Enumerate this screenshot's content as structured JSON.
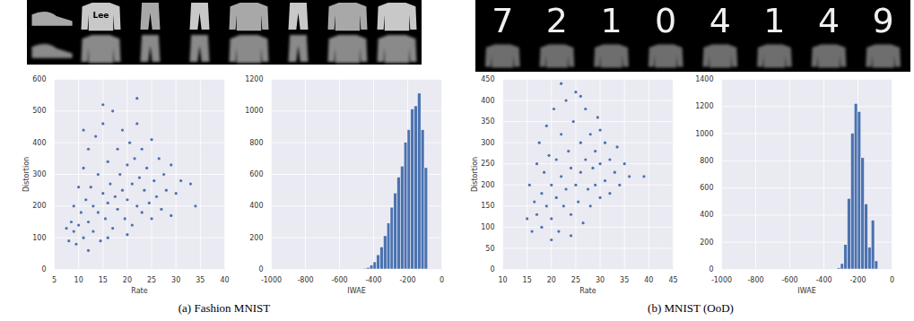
{
  "panels": [
    {
      "caption": "(a) Fashion MNIST",
      "image_text": [
        "Lee"
      ]
    },
    {
      "caption": "(b) MNIST (OoD)",
      "image_text": [
        "7",
        "2",
        "1",
        "0",
        "4",
        "1",
        "4",
        "9"
      ]
    }
  ],
  "chart_data": [
    {
      "type": "scatter",
      "x_label": "Rate",
      "y_label": "Distortion",
      "color": "#4c72b0",
      "grid": true,
      "xlim": [
        5,
        40
      ],
      "xticks": [
        5,
        10,
        15,
        20,
        25,
        30,
        35,
        40
      ],
      "ylim": [
        0,
        600
      ],
      "yticks": [
        0,
        100,
        200,
        300,
        400,
        500,
        600
      ],
      "x": [
        8,
        8.5,
        9,
        9,
        9.5,
        10,
        10,
        10.5,
        11,
        11,
        11.5,
        12,
        12,
        12.5,
        13,
        13,
        13.5,
        14,
        14,
        14.5,
        15,
        15,
        15.5,
        16,
        16,
        16.5,
        17,
        17,
        17.5,
        18,
        18,
        18.5,
        19,
        19,
        19.5,
        20,
        20,
        20.5,
        21,
        21,
        21.5,
        22,
        22,
        22.5,
        23,
        23,
        23.5,
        24,
        24.5,
        25,
        25,
        25.5,
        26,
        26.5,
        27,
        27.5,
        28,
        29,
        29,
        30,
        31,
        33,
        34,
        12,
        16,
        20,
        7.5,
        11,
        15,
        22
      ],
      "values": [
        90,
        150,
        120,
        200,
        80,
        140,
        260,
        180,
        100,
        320,
        220,
        150,
        380,
        260,
        120,
        200,
        420,
        180,
        300,
        90,
        240,
        460,
        160,
        340,
        210,
        270,
        500,
        130,
        230,
        380,
        190,
        300,
        250,
        440,
        160,
        330,
        220,
        400,
        270,
        140,
        350,
        200,
        460,
        290,
        180,
        380,
        250,
        320,
        210,
        410,
        160,
        280,
        230,
        350,
        190,
        300,
        250,
        170,
        330,
        240,
        280,
        270,
        200,
        60,
        100,
        110,
        130,
        440,
        520,
        540
      ]
    },
    {
      "type": "histogram",
      "x_label": "IWAE",
      "color": "#4c72b0",
      "grid": true,
      "xlim": [
        -1000,
        0
      ],
      "xticks": [
        -1000,
        -800,
        -600,
        -400,
        -200,
        0
      ],
      "ylim": [
        0,
        1200
      ],
      "yticks": [
        0,
        200,
        400,
        600,
        800,
        1000,
        1200
      ],
      "bins": [
        -460,
        -440,
        -420,
        -400,
        -380,
        -360,
        -340,
        -320,
        -300,
        -280,
        -260,
        -240,
        -220,
        -200,
        -180,
        -160,
        -140,
        -120,
        -100,
        -80
      ],
      "values": [
        5,
        10,
        25,
        45,
        90,
        140,
        210,
        290,
        390,
        480,
        580,
        650,
        800,
        880,
        1010,
        1030,
        1110,
        880,
        640
      ]
    },
    {
      "type": "scatter",
      "x_label": "Rate",
      "y_label": "Distortion",
      "color": "#4c72b0",
      "grid": true,
      "xlim": [
        10,
        45
      ],
      "xticks": [
        10,
        15,
        20,
        25,
        30,
        35,
        40,
        45
      ],
      "ylim": [
        0,
        450
      ],
      "yticks": [
        0,
        50,
        100,
        150,
        200,
        250,
        300,
        350,
        400,
        450
      ],
      "x": [
        15,
        15.5,
        16,
        16.5,
        17,
        17,
        17.5,
        18,
        18,
        18.5,
        19,
        19,
        19.5,
        20,
        20,
        20.5,
        21,
        21,
        21.5,
        22,
        22,
        22.5,
        23,
        23,
        23.5,
        24,
        24,
        24.5,
        25,
        25,
        25.5,
        26,
        26,
        26.5,
        27,
        27,
        27.5,
        28,
        28,
        28.5,
        29,
        29,
        29.5,
        30,
        30,
        31,
        31,
        32,
        32,
        33,
        33.5,
        34,
        35,
        36,
        39,
        20,
        24,
        22,
        26,
        30
      ],
      "values": [
        120,
        200,
        90,
        160,
        250,
        130,
        300,
        180,
        100,
        230,
        150,
        340,
        270,
        200,
        120,
        380,
        170,
        260,
        90,
        220,
        320,
        150,
        400,
        190,
        280,
        130,
        240,
        350,
        200,
        420,
        160,
        300,
        230,
        110,
        260,
        380,
        190,
        320,
        150,
        240,
        280,
        200,
        360,
        170,
        250,
        300,
        210,
        260,
        180,
        230,
        290,
        200,
        250,
        220,
        220,
        70,
        80,
        440,
        410,
        330
      ]
    },
    {
      "type": "histogram",
      "x_label": "IWAE",
      "color": "#4c72b0",
      "grid": true,
      "xlim": [
        -1000,
        0
      ],
      "xticks": [
        -1000,
        -800,
        -600,
        -400,
        -200,
        0
      ],
      "ylim": [
        0,
        1400
      ],
      "yticks": [
        0,
        200,
        400,
        600,
        800,
        1000,
        1200,
        1400
      ],
      "bins": [
        -320,
        -300,
        -280,
        -260,
        -240,
        -220,
        -200,
        -180,
        -160,
        -140,
        -120,
        -100,
        -80
      ],
      "values": [
        10,
        40,
        180,
        520,
        1000,
        1220,
        1160,
        820,
        480,
        160,
        360,
        60
      ]
    }
  ]
}
